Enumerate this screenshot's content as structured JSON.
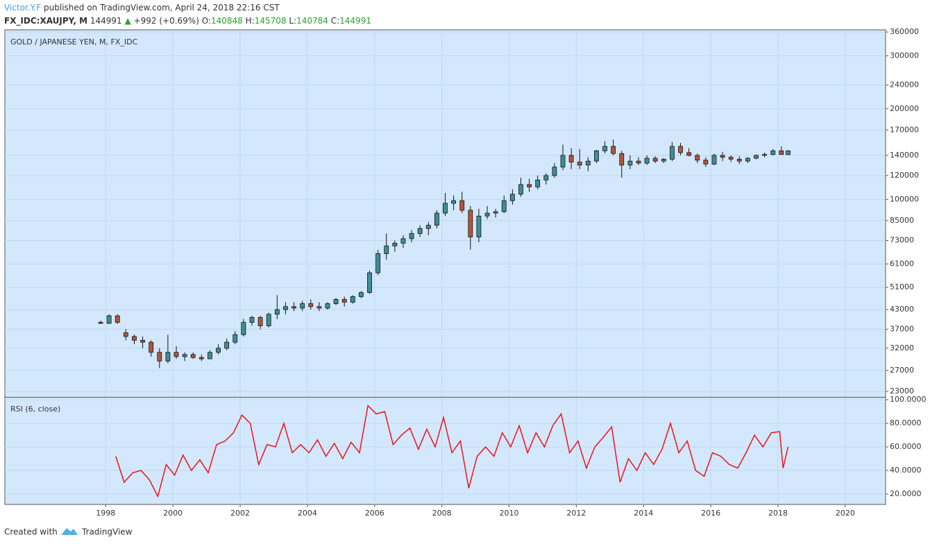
{
  "header": {
    "author": "Victor.Y.F",
    "published": "published on TradingView.com, April 24, 2018 22:16 CST",
    "symbol": "FX_IDC:XAUJPY, M",
    "last": 144991,
    "arrow": "▲",
    "change": "+992 (+0.69%)",
    "ohlc": [
      {
        "label": "O:",
        "value": 140848
      },
      {
        "label": "H:",
        "value": 145708
      },
      {
        "label": "L:",
        "value": 140784
      },
      {
        "label": "C:",
        "value": 144991
      }
    ]
  },
  "footer": {
    "created": "Created with",
    "brand": "TradingView"
  },
  "chart_data": [
    {
      "type": "candlestick",
      "title": "GOLD / JAPANESE YEN, M, FX_IDC",
      "log_scale": true,
      "grid": true,
      "up_color": "#3f8f95",
      "down_color": "#b5563a",
      "xlim": [
        1995,
        2021.2
      ],
      "xticks": [
        1998,
        2000,
        2002,
        2004,
        2006,
        2008,
        2010,
        2012,
        2014,
        2016,
        2018,
        2020
      ],
      "ylim": [
        22040,
        366000
      ],
      "yticks": [
        23000,
        27000,
        32000,
        37000,
        43000,
        51000,
        61000,
        73000,
        85000,
        100000,
        120000,
        140000,
        170000,
        200000,
        240000,
        300000,
        360000
      ],
      "x": [
        1997.85,
        1998.1,
        1998.35,
        1998.6,
        1998.85,
        1999.1,
        1999.35,
        1999.6,
        1999.85,
        2000.1,
        2000.35,
        2000.6,
        2000.85,
        2001.1,
        2001.35,
        2001.6,
        2001.85,
        2002.1,
        2002.35,
        2002.6,
        2002.85,
        2003.1,
        2003.35,
        2003.6,
        2003.85,
        2004.1,
        2004.35,
        2004.6,
        2004.85,
        2005.1,
        2005.35,
        2005.6,
        2005.85,
        2006.1,
        2006.35,
        2006.6,
        2006.85,
        2007.1,
        2007.35,
        2007.6,
        2007.85,
        2008.1,
        2008.35,
        2008.6,
        2008.85,
        2009.1,
        2009.35,
        2009.6,
        2009.85,
        2010.1,
        2010.35,
        2010.6,
        2010.85,
        2011.1,
        2011.35,
        2011.6,
        2011.85,
        2012.1,
        2012.35,
        2012.6,
        2012.85,
        2013.1,
        2013.35,
        2013.6,
        2013.85,
        2014.1,
        2014.35,
        2014.6,
        2014.85,
        2015.1,
        2015.35,
        2015.6,
        2015.85,
        2016.1,
        2016.35,
        2016.6,
        2016.85,
        2017.1,
        2017.35,
        2017.6,
        2017.85,
        2018.1,
        2018.3
      ],
      "open": [
        39000,
        38700,
        41000,
        36000,
        35000,
        34000,
        33500,
        31000,
        29000,
        31000,
        30000,
        30500,
        29800,
        29500,
        31000,
        32000,
        33500,
        35500,
        39000,
        40500,
        38000,
        41500,
        43000,
        44000,
        43500,
        45000,
        44000,
        43500,
        45000,
        46500,
        45500,
        47500,
        49000,
        57000,
        66000,
        70000,
        71500,
        74000,
        77000,
        80000,
        82000,
        90000,
        97000,
        99000,
        92000,
        75000,
        88000,
        90000,
        91000,
        99000,
        104000,
        112000,
        110000,
        116000,
        120000,
        128000,
        140000,
        133000,
        130000,
        134000,
        145000,
        150000,
        142000,
        130000,
        134000,
        132000,
        137000,
        134000,
        136000,
        150000,
        143000,
        140000,
        135000,
        131000,
        140000,
        138000,
        136000,
        134000,
        137000,
        140000,
        141000,
        145000,
        140848
      ],
      "high": [
        39500,
        41500,
        41500,
        37000,
        35500,
        35000,
        34000,
        32000,
        35500,
        32500,
        31000,
        31000,
        30500,
        31500,
        33000,
        34500,
        36500,
        40000,
        41000,
        41000,
        42000,
        48000,
        45500,
        45500,
        46000,
        46500,
        45500,
        45500,
        47000,
        47500,
        48000,
        49500,
        58000,
        68000,
        77000,
        73000,
        76000,
        79000,
        82000,
        84000,
        92000,
        105000,
        103000,
        106000,
        95000,
        93000,
        95000,
        93000,
        103000,
        108000,
        118000,
        117000,
        120000,
        122000,
        132000,
        152000,
        148000,
        147000,
        138000,
        146000,
        156000,
        158000,
        145000,
        140000,
        138000,
        140000,
        139000,
        137000,
        155000,
        154000,
        148000,
        142000,
        138000,
        142000,
        144000,
        140000,
        139000,
        138000,
        141000,
        143000,
        147000,
        150000,
        145708
      ],
      "low": [
        38500,
        38500,
        38500,
        34000,
        33000,
        32000,
        30000,
        27500,
        28500,
        29500,
        29000,
        29500,
        29000,
        29500,
        30500,
        31500,
        33000,
        35000,
        38000,
        37000,
        37500,
        40000,
        41500,
        42500,
        42500,
        43000,
        42500,
        43000,
        44500,
        44000,
        45000,
        47000,
        48500,
        56000,
        63000,
        67000,
        69000,
        72000,
        75000,
        76000,
        80000,
        88000,
        92000,
        90000,
        68000,
        72000,
        86000,
        87000,
        90000,
        96000,
        102000,
        106000,
        108000,
        112000,
        118000,
        125000,
        126000,
        126000,
        124000,
        132000,
        142000,
        140000,
        118000,
        126000,
        130000,
        130000,
        132000,
        132000,
        134000,
        140000,
        139000,
        132000,
        128000,
        130000,
        134000,
        133000,
        131000,
        132000,
        136000,
        138000,
        140000,
        142000,
        140784
      ],
      "close": [
        38700,
        41000,
        39000,
        35000,
        34000,
        33500,
        31000,
        29000,
        31000,
        30000,
        30500,
        29800,
        29500,
        31000,
        32000,
        33500,
        35500,
        39000,
        40500,
        38000,
        41500,
        43000,
        44000,
        43500,
        45000,
        44000,
        43500,
        45000,
        46500,
        45500,
        47500,
        49000,
        57000,
        66000,
        70000,
        71500,
        74000,
        77000,
        80000,
        82000,
        90000,
        97000,
        99000,
        92000,
        75000,
        88000,
        90000,
        91000,
        99000,
        104000,
        112000,
        110000,
        116000,
        120000,
        128000,
        140000,
        133000,
        130000,
        134000,
        145000,
        150000,
        142000,
        130000,
        134000,
        132000,
        137000,
        134000,
        136000,
        150000,
        143000,
        140000,
        135000,
        131000,
        140000,
        138000,
        136000,
        134000,
        137000,
        140000,
        141000,
        145000,
        141000,
        144991
      ]
    },
    {
      "type": "line",
      "title": "RSI (6, close)",
      "grid": true,
      "xlim": [
        1995,
        2021.2
      ],
      "xticks": [
        1998,
        2000,
        2002,
        2004,
        2006,
        2008,
        2010,
        2012,
        2014,
        2016,
        2018,
        2020
      ],
      "ylim": [
        11.2,
        101.8
      ],
      "yticks": [
        {
          "value": 20,
          "label": "20.0000"
        },
        {
          "value": 40,
          "label": "40.0000"
        },
        {
          "value": 60,
          "label": "60.0000"
        },
        {
          "value": 80,
          "label": "80.0000"
        },
        {
          "value": 100,
          "label": "100.0000"
        }
      ],
      "x": [
        1998.3,
        1998.55,
        1998.8,
        1999.05,
        1999.3,
        1999.55,
        1999.8,
        2000.05,
        2000.3,
        2000.55,
        2000.8,
        2001.05,
        2001.3,
        2001.55,
        2001.8,
        2002.05,
        2002.3,
        2002.55,
        2002.8,
        2003.05,
        2003.3,
        2003.55,
        2003.8,
        2004.05,
        2004.3,
        2004.55,
        2004.8,
        2005.05,
        2005.3,
        2005.55,
        2005.8,
        2006.05,
        2006.3,
        2006.55,
        2006.8,
        2007.05,
        2007.3,
        2007.55,
        2007.8,
        2008.05,
        2008.3,
        2008.55,
        2008.8,
        2009.05,
        2009.3,
        2009.55,
        2009.8,
        2010.05,
        2010.3,
        2010.55,
        2010.8,
        2011.05,
        2011.3,
        2011.55,
        2011.8,
        2012.05,
        2012.3,
        2012.55,
        2012.8,
        2013.05,
        2013.3,
        2013.55,
        2013.8,
        2014.05,
        2014.3,
        2014.55,
        2014.8,
        2015.05,
        2015.3,
        2015.55,
        2015.8,
        2016.05,
        2016.3,
        2016.55,
        2016.8,
        2017.05,
        2017.3,
        2017.55,
        2017.8,
        2018.05,
        2018.15,
        2018.3
      ],
      "series": [
        {
          "name": "RSI",
          "color": "#e8141e",
          "values": [
            52,
            30,
            38,
            40,
            32,
            18,
            45,
            36,
            53,
            40,
            49,
            38,
            62,
            65,
            72,
            87,
            80,
            45,
            62,
            60,
            80,
            55,
            62,
            55,
            66,
            52,
            63,
            50,
            64,
            55,
            95,
            88,
            90,
            62,
            70,
            76,
            58,
            75,
            60,
            85,
            55,
            65,
            25,
            52,
            60,
            52,
            72,
            60,
            78,
            55,
            72,
            60,
            78,
            88,
            55,
            65,
            42,
            60,
            68,
            77,
            30,
            50,
            40,
            55,
            45,
            58,
            80,
            55,
            65,
            40,
            35,
            55,
            52,
            45,
            42,
            55,
            70,
            60,
            72,
            73,
            42,
            60
          ]
        }
      ]
    }
  ]
}
